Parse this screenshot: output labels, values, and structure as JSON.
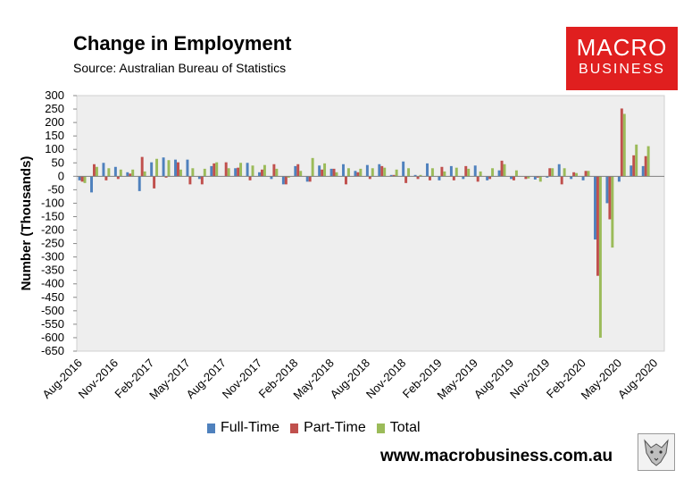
{
  "header": {
    "title": "Change in Employment",
    "source": "Source: Australian Bureau of Statistics"
  },
  "logo": {
    "line1": "MACRO",
    "line2": "BUSINESS",
    "color": "#e01f1f"
  },
  "footer": {
    "website": "www.macrobusiness.com.au"
  },
  "chart_data": {
    "type": "bar",
    "title": "Change in Employment",
    "ylabel": "Number (Thousands)",
    "xlabel": "",
    "ylim": [
      -650,
      300
    ],
    "yticks": [
      300,
      250,
      200,
      150,
      100,
      50,
      0,
      -50,
      -100,
      -150,
      -200,
      -250,
      -300,
      -350,
      -400,
      -450,
      -500,
      -550,
      -600,
      -650
    ],
    "legend_position": "bottom",
    "grid": false,
    "plot_background": "#eeeeee",
    "categories": [
      "Aug-2016",
      "Sep-2016",
      "Oct-2016",
      "Nov-2016",
      "Dec-2016",
      "Jan-2017",
      "Feb-2017",
      "Mar-2017",
      "Apr-2017",
      "May-2017",
      "Jun-2017",
      "Jul-2017",
      "Aug-2017",
      "Sep-2017",
      "Oct-2017",
      "Nov-2017",
      "Dec-2017",
      "Jan-2018",
      "Feb-2018",
      "Mar-2018",
      "Apr-2018",
      "May-2018",
      "Jun-2018",
      "Jul-2018",
      "Aug-2018",
      "Sep-2018",
      "Oct-2018",
      "Nov-2018",
      "Dec-2018",
      "Jan-2019",
      "Feb-2019",
      "Mar-2019",
      "Apr-2019",
      "May-2019",
      "Jun-2019",
      "Jul-2019",
      "Aug-2019",
      "Sep-2019",
      "Oct-2019",
      "Nov-2019",
      "Dec-2019",
      "Jan-2020",
      "Feb-2020",
      "Mar-2020",
      "Apr-2020",
      "May-2020",
      "Jun-2020",
      "Jul-2020",
      "Aug-2020"
    ],
    "tick_labels": [
      "Aug-2016",
      "Nov-2016",
      "Feb-2017",
      "May-2017",
      "Aug-2017",
      "Nov-2017",
      "Feb-2018",
      "May-2018",
      "Aug-2018",
      "Nov-2018",
      "Feb-2019",
      "May-2019",
      "Aug-2019",
      "Nov-2019",
      "Feb-2020",
      "May-2020",
      "Aug-2020"
    ],
    "series": [
      {
        "name": "Full-Time",
        "color": "#4f81bd",
        "values": [
          -15,
          -60,
          50,
          35,
          15,
          -55,
          52,
          70,
          62,
          62,
          -10,
          38,
          0,
          30,
          50,
          15,
          -10,
          -30,
          38,
          -20,
          40,
          28,
          45,
          20,
          42,
          45,
          5,
          55,
          5,
          48,
          -15,
          38,
          -10,
          40,
          -15,
          22,
          -10,
          0,
          -12,
          -5,
          45,
          -10,
          -15,
          -235,
          -100,
          -20,
          40,
          38,
          0
        ]
      },
      {
        "name": "Part-Time",
        "color": "#c0504d",
        "values": [
          -20,
          45,
          -15,
          -10,
          10,
          72,
          -45,
          -5,
          52,
          -30,
          -30,
          48,
          52,
          32,
          -15,
          25,
          45,
          -30,
          45,
          -20,
          25,
          28,
          -30,
          15,
          -10,
          38,
          5,
          -25,
          -10,
          -15,
          35,
          -15,
          38,
          -20,
          -10,
          58,
          -15,
          -10,
          -5,
          30,
          -30,
          15,
          20,
          -370,
          -160,
          252,
          78,
          75,
          0
        ]
      },
      {
        "name": "Total",
        "color": "#9bbb59",
        "values": [
          -25,
          35,
          30,
          25,
          25,
          18,
          65,
          60,
          25,
          30,
          28,
          52,
          30,
          50,
          40,
          42,
          28,
          -5,
          20,
          68,
          48,
          15,
          30,
          28,
          30,
          32,
          25,
          30,
          5,
          30,
          18,
          32,
          28,
          18,
          30,
          45,
          22,
          -8,
          -20,
          30,
          30,
          12,
          20,
          -600,
          -265,
          232,
          118,
          112,
          0
        ]
      }
    ]
  }
}
